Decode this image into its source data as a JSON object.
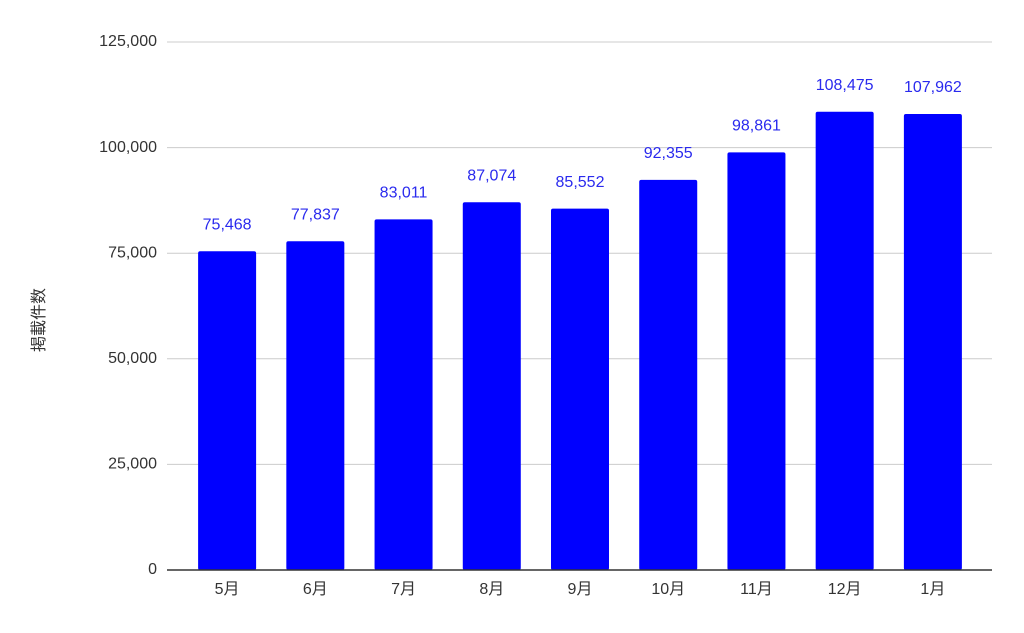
{
  "chart_data": {
    "type": "bar",
    "y_label": "掲載件数",
    "categories": [
      "5月",
      "6月",
      "7月",
      "8月",
      "9月",
      "10月",
      "11月",
      "12月",
      "1月"
    ],
    "values": [
      75468,
      77837,
      83011,
      87074,
      85552,
      92355,
      98861,
      108475,
      107962
    ],
    "value_labels": [
      "75,468",
      "77,837",
      "83,011",
      "87,074",
      "85,552",
      "92,355",
      "98,861",
      "108,475",
      "107,962"
    ],
    "color": "#0000ff",
    "label_color": "#2a2aee",
    "ylim": [
      0,
      125000
    ],
    "yticks": [
      0,
      {
        "value": 25000,
        "label": "25,000"
      },
      {
        "value": 50000,
        "label": "50,000"
      },
      {
        "value": 75000,
        "label": "75,000"
      },
      {
        "value": 100000,
        "label": "100,000"
      },
      {
        "value": 125000,
        "label": "125,000"
      }
    ],
    "grid": true
  }
}
